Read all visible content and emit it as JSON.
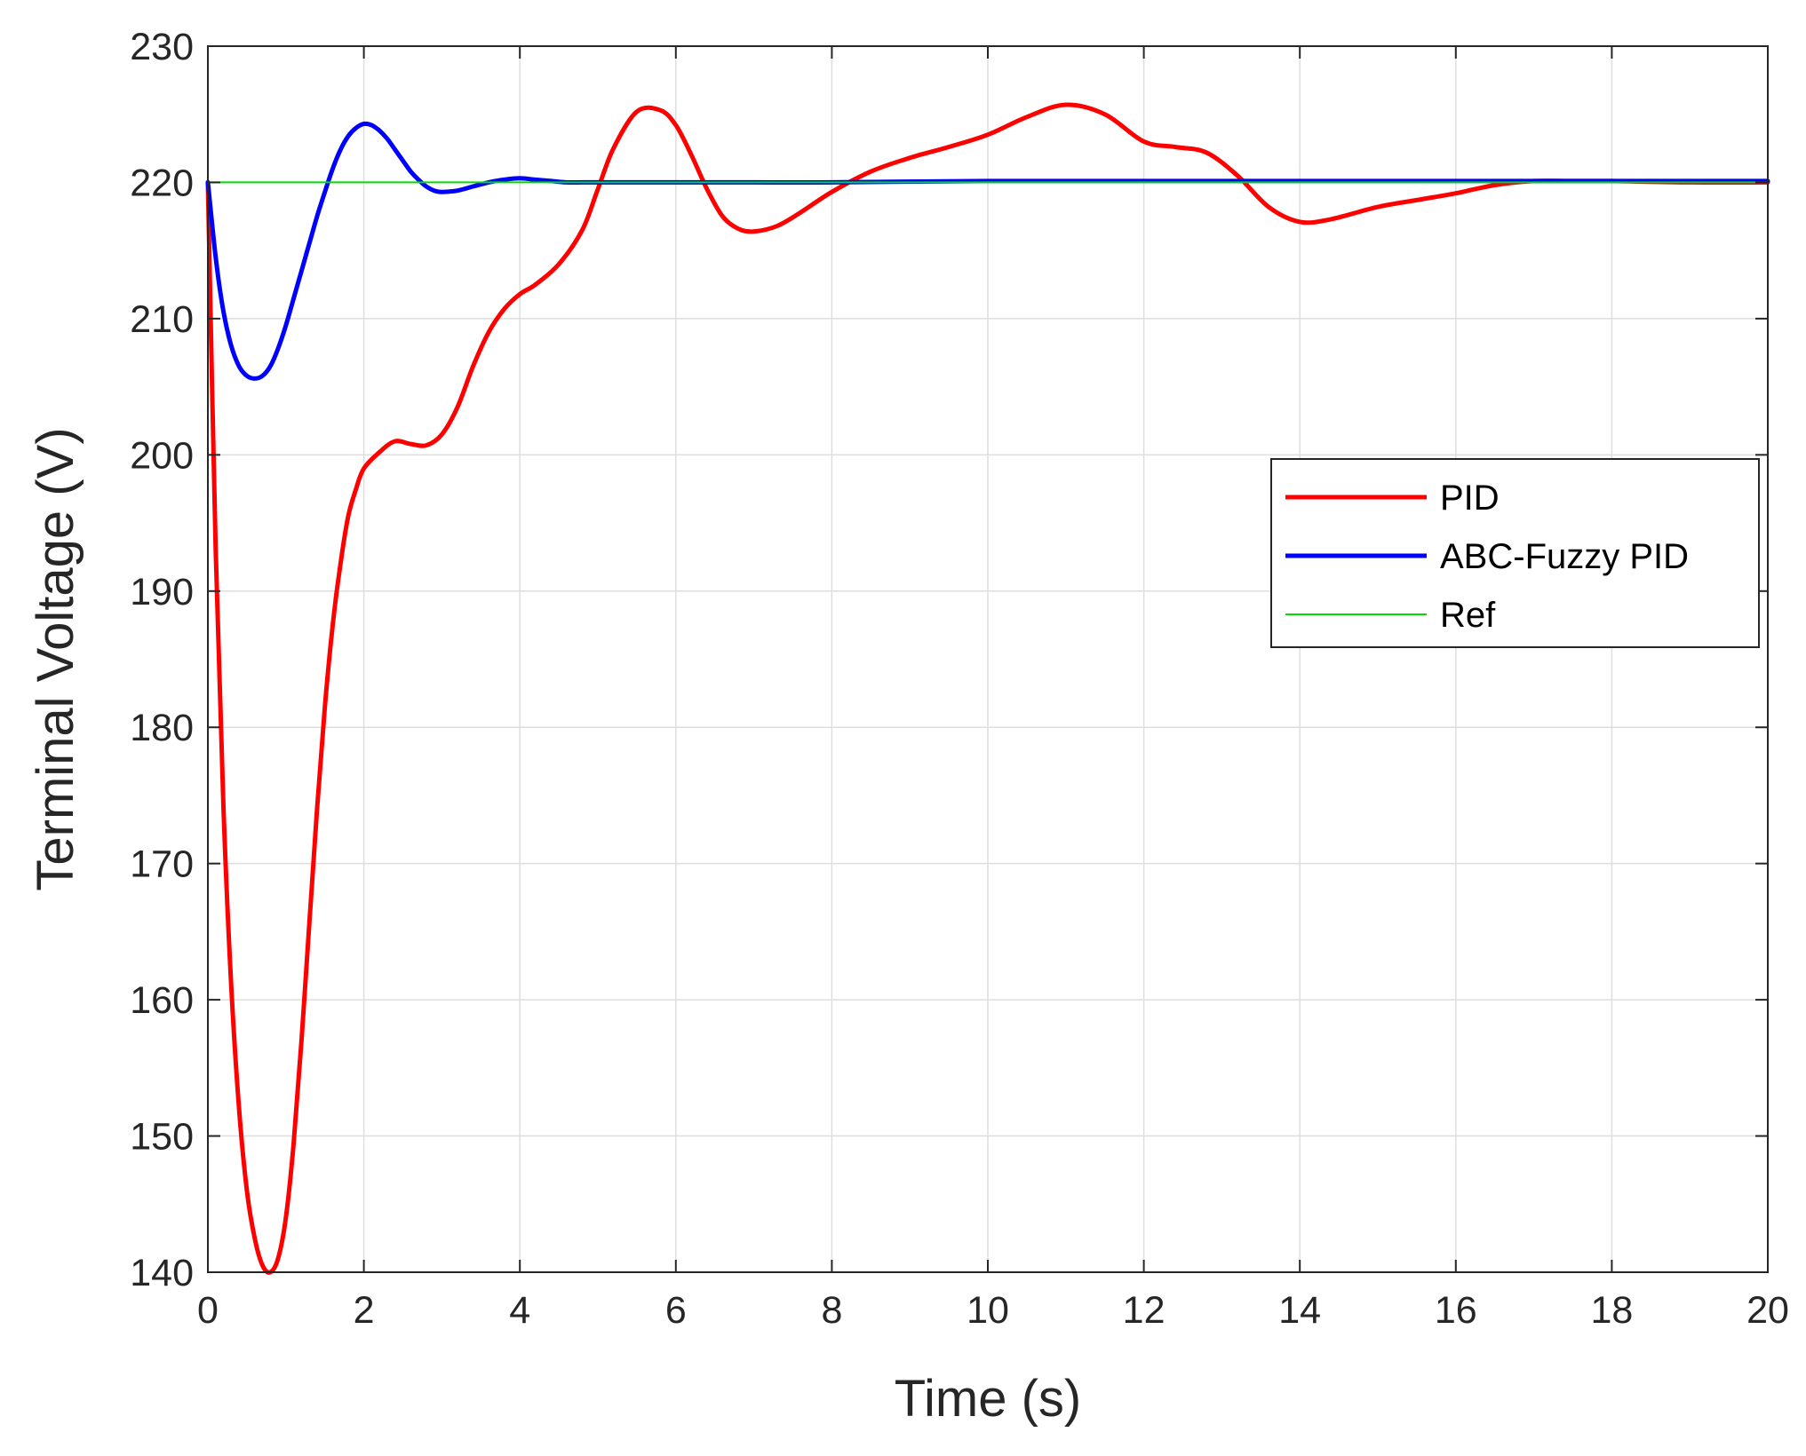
{
  "chart_data": {
    "type": "line",
    "title": "",
    "xlabel": "Time (s)",
    "ylabel": "Terminal Voltage (V)",
    "xlim": [
      0,
      20
    ],
    "ylim": [
      140,
      230
    ],
    "xticks": [
      0,
      2,
      4,
      6,
      8,
      10,
      12,
      14,
      16,
      18,
      20
    ],
    "yticks": [
      140,
      150,
      160,
      170,
      180,
      190,
      200,
      210,
      220,
      230
    ],
    "grid": true,
    "legend_position": "right",
    "series": [
      {
        "name": "PID",
        "color": "#ff0000",
        "x": [
          0,
          0.1,
          0.2,
          0.3,
          0.4,
          0.5,
          0.6,
          0.7,
          0.8,
          0.9,
          1.0,
          1.1,
          1.2,
          1.3,
          1.4,
          1.5,
          1.6,
          1.7,
          1.8,
          1.9,
          2.0,
          2.2,
          2.4,
          2.6,
          2.8,
          3.0,
          3.2,
          3.4,
          3.6,
          3.8,
          4.0,
          4.2,
          4.5,
          4.8,
          5.0,
          5.2,
          5.5,
          5.8,
          6.0,
          6.2,
          6.4,
          6.6,
          6.8,
          7.0,
          7.3,
          7.6,
          8.0,
          8.5,
          9.0,
          9.5,
          10.0,
          10.5,
          11.0,
          11.5,
          12.0,
          12.4,
          12.8,
          13.2,
          13.6,
          14.0,
          14.4,
          15.0,
          15.5,
          16.0,
          16.5,
          17.0,
          17.5,
          18.0,
          19.0,
          20.0
        ],
        "values": [
          220,
          193,
          174,
          161,
          152,
          146,
          142.5,
          140.5,
          140,
          141,
          144,
          149.5,
          157,
          165.5,
          174,
          181.5,
          187.5,
          192,
          195.5,
          197.5,
          199,
          200.2,
          201,
          200.8,
          200.7,
          201.5,
          203.5,
          206.5,
          209,
          210.7,
          211.8,
          212.5,
          214,
          216.5,
          219.5,
          222.5,
          225.2,
          225.3,
          224.2,
          222,
          219.5,
          217.5,
          216.6,
          216.4,
          216.8,
          217.8,
          219.3,
          220.8,
          221.8,
          222.6,
          223.5,
          224.8,
          225.7,
          225,
          223,
          222.6,
          222.2,
          220.5,
          218.2,
          217.1,
          217.3,
          218.2,
          218.7,
          219.2,
          219.8,
          220.1,
          220.1,
          220.1,
          220,
          220
        ]
      },
      {
        "name": "ABC-Fuzzy PID",
        "color": "#0000ff",
        "x": [
          0,
          0.1,
          0.2,
          0.3,
          0.4,
          0.5,
          0.6,
          0.7,
          0.8,
          0.9,
          1.0,
          1.1,
          1.2,
          1.3,
          1.4,
          1.5,
          1.6,
          1.7,
          1.8,
          1.9,
          2.0,
          2.1,
          2.2,
          2.3,
          2.4,
          2.5,
          2.6,
          2.7,
          2.8,
          2.9,
          3.0,
          3.2,
          3.4,
          3.6,
          3.8,
          4.0,
          4.2,
          4.4,
          4.6,
          4.8,
          5.0,
          5.5,
          6.0,
          7.0,
          8.0,
          10.0,
          12.0,
          14.0,
          16.0,
          18.0,
          20.0
        ],
        "values": [
          220,
          214.5,
          210.5,
          208,
          206.5,
          205.8,
          205.6,
          205.8,
          206.5,
          207.8,
          209.5,
          211.5,
          213.5,
          215.5,
          217.5,
          219.3,
          221,
          222.4,
          223.4,
          224,
          224.3,
          224.2,
          223.8,
          223.2,
          222.4,
          221.6,
          220.8,
          220.2,
          219.7,
          219.4,
          219.3,
          219.4,
          219.7,
          220,
          220.2,
          220.3,
          220.2,
          220.1,
          220,
          220,
          220,
          220,
          220,
          220,
          220,
          220.1,
          220.1,
          220.1,
          220.1,
          220.1,
          220.1
        ]
      },
      {
        "name": "Ref",
        "color": "#00dd00",
        "x": [
          0,
          20
        ],
        "values": [
          220,
          220
        ]
      }
    ]
  }
}
